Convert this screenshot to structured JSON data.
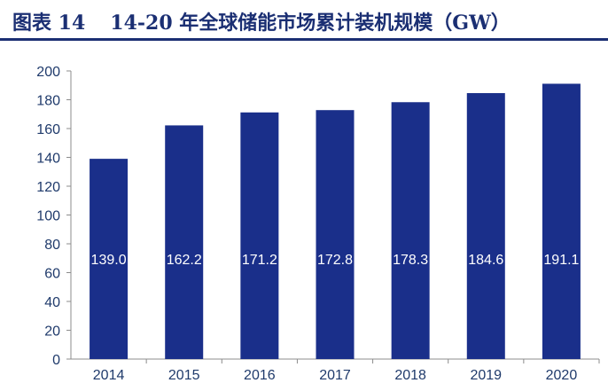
{
  "figure": {
    "label": "图表 14",
    "title": "14-20 年全球储能市场累计装机规模（GW）"
  },
  "colors": {
    "bar": "#1a2f8a",
    "title": "#1b2f73",
    "axis": "#8c8c8c",
    "tick_text": "#1f3a6b",
    "data_label": "#ffffff"
  },
  "chart_data": {
    "type": "bar",
    "title": "14-20 年全球储能市场累计装机规模（GW）",
    "xlabel": "",
    "ylabel": "",
    "categories": [
      "2014",
      "2015",
      "2016",
      "2017",
      "2018",
      "2019",
      "2020"
    ],
    "values": [
      139.0,
      162.2,
      171.2,
      172.8,
      178.3,
      184.6,
      191.1
    ],
    "data_labels": [
      "139.0",
      "162.2",
      "171.2",
      "172.8",
      "178.3",
      "184.6",
      "191.1"
    ],
    "ylim": [
      0,
      200
    ],
    "yticks": [
      0,
      20,
      40,
      60,
      80,
      100,
      120,
      140,
      160,
      180,
      200
    ],
    "grid": false,
    "legend": "none"
  }
}
